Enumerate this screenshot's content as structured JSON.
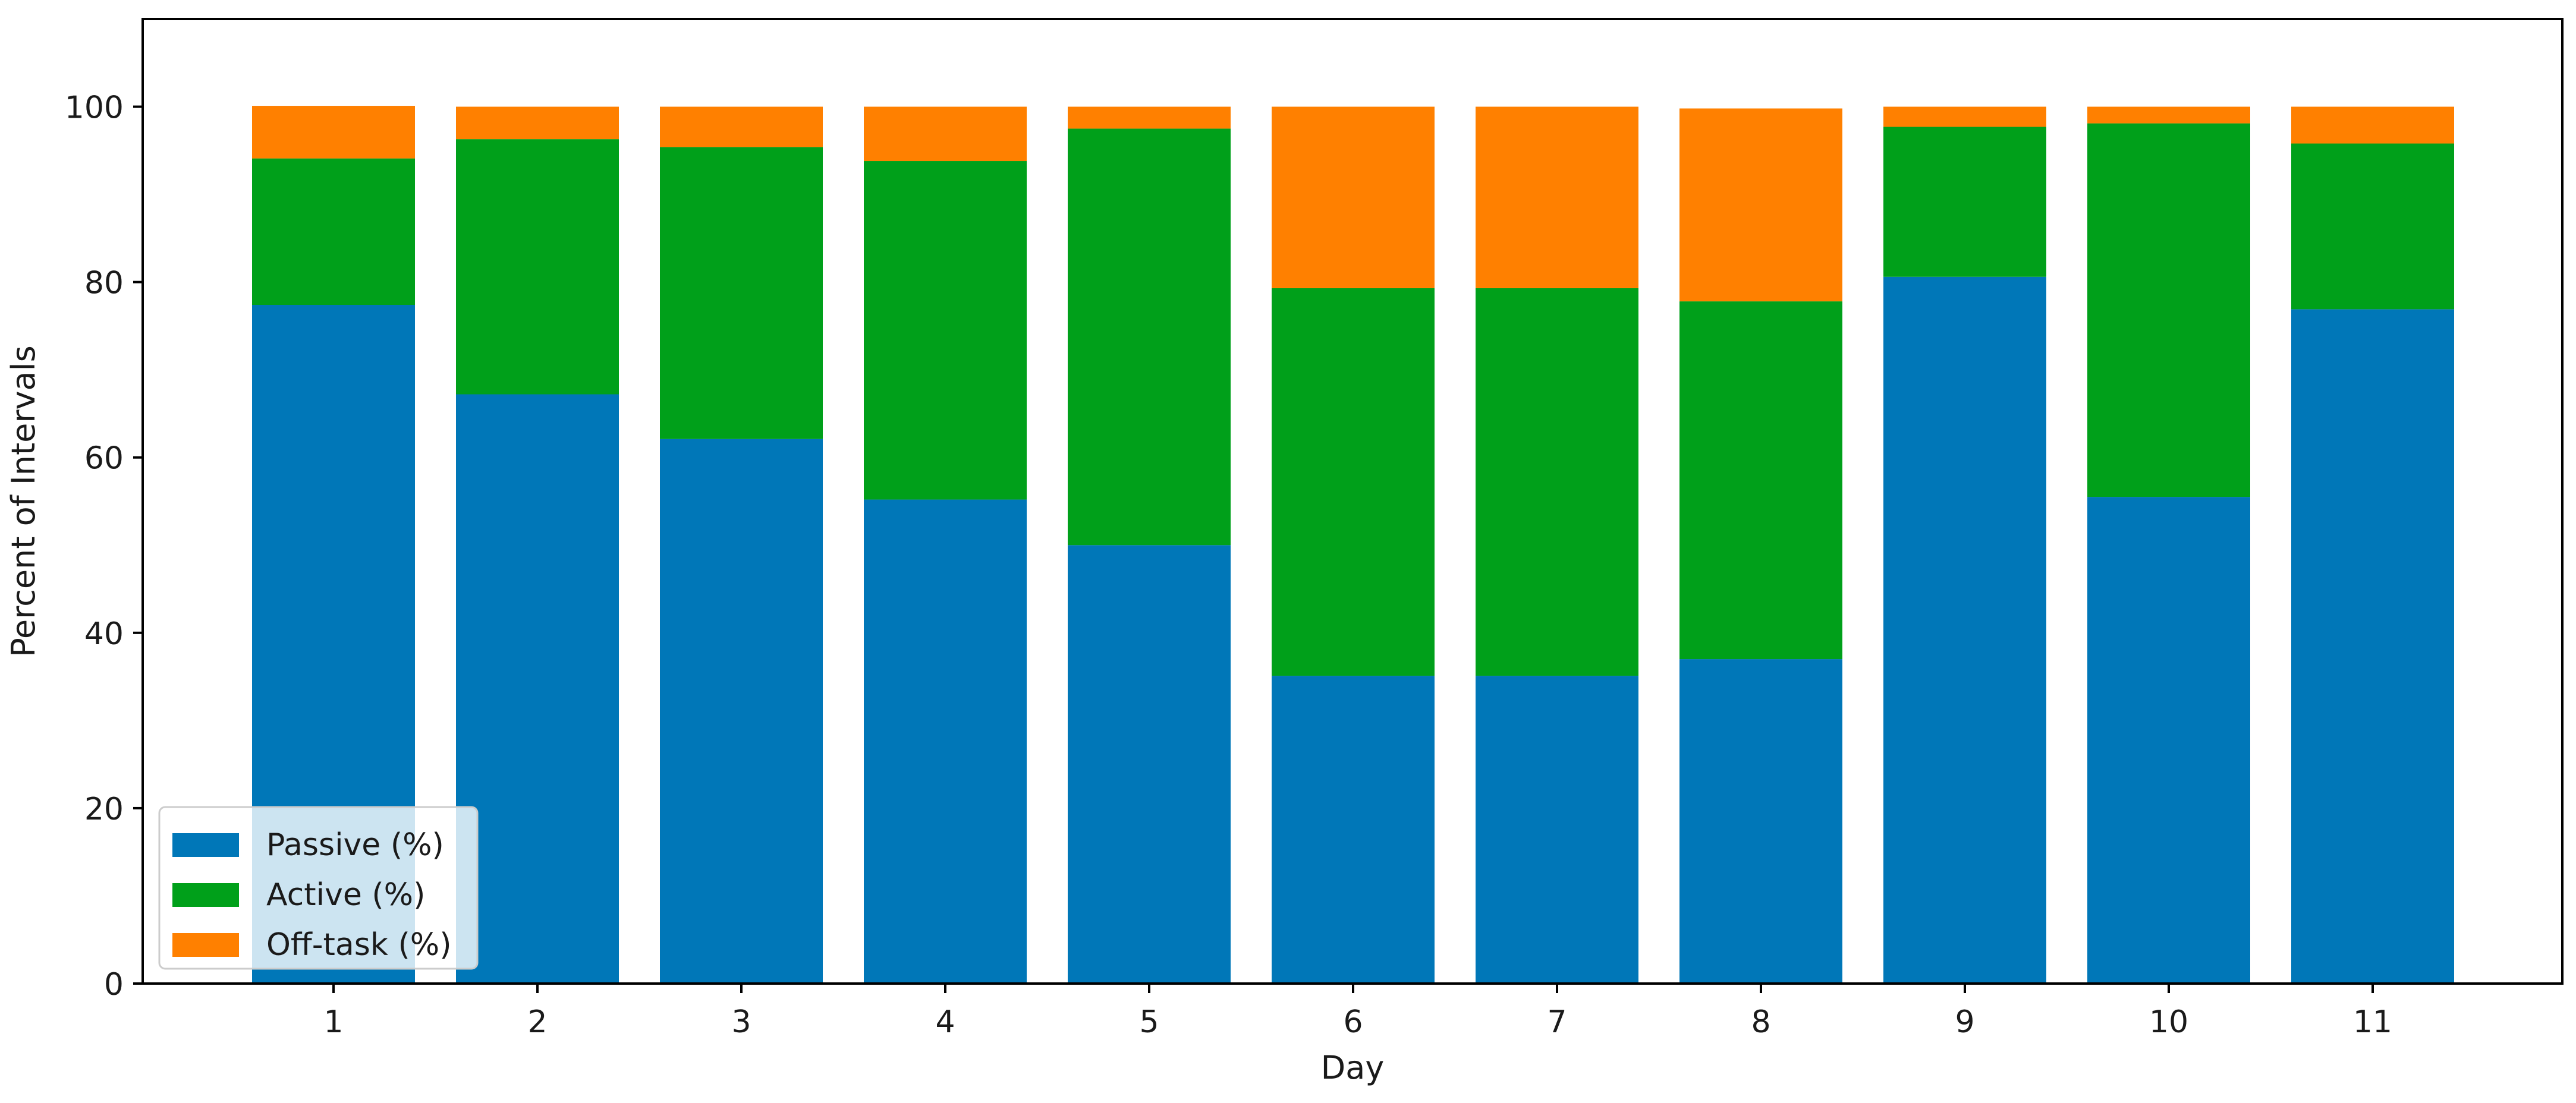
{
  "chart_data": {
    "type": "bar",
    "stacked": true,
    "title": "",
    "xlabel": "Day",
    "ylabel": "Percent of Intervals",
    "categories": [
      "1",
      "2",
      "3",
      "4",
      "5",
      "6",
      "7",
      "8",
      "9",
      "10",
      "11"
    ],
    "ylim": [
      0,
      110
    ],
    "yticks": [
      0,
      20,
      40,
      60,
      80,
      100
    ],
    "grid": false,
    "legend_position": "lower-left",
    "series": [
      {
        "name": "Passive (%)",
        "color": "#0077b8",
        "values": [
          77.4,
          67.2,
          62.1,
          55.2,
          50.0,
          35.1,
          35.1,
          37.0,
          80.6,
          55.5,
          76.9
        ]
      },
      {
        "name": "Active (%)",
        "color": "#00a01a",
        "values": [
          16.7,
          29.1,
          33.3,
          38.6,
          47.5,
          44.2,
          44.2,
          40.8,
          17.1,
          42.6,
          18.9
        ]
      },
      {
        "name": "Off-task (%)",
        "color": "#ff8000",
        "values": [
          6.0,
          3.7,
          4.6,
          6.2,
          2.5,
          20.7,
          20.7,
          22.0,
          2.3,
          1.9,
          4.2
        ]
      }
    ]
  }
}
